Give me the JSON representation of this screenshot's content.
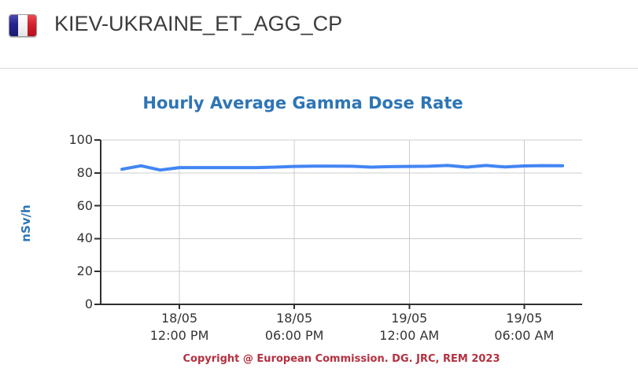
{
  "header": {
    "title": "KIEV-UKRAINE_ET_AGG_CP",
    "flag": "france-flag"
  },
  "chart_data": {
    "type": "line",
    "title": "Hourly Average Gamma Dose Rate",
    "xlabel": "",
    "ylabel": "nSv/h",
    "ylim": [
      0,
      100
    ],
    "yticks": [
      0,
      20,
      40,
      60,
      80,
      100
    ],
    "grid": true,
    "legend": "none",
    "x": [
      "18/05 09:00 AM",
      "18/05 10:00 AM",
      "18/05 11:00 AM",
      "18/05 12:00 PM",
      "18/05 01:00 PM",
      "18/05 02:00 PM",
      "18/05 03:00 PM",
      "18/05 04:00 PM",
      "18/05 05:00 PM",
      "18/05 06:00 PM",
      "18/05 07:00 PM",
      "18/05 08:00 PM",
      "18/05 09:00 PM",
      "18/05 10:00 PM",
      "18/05 11:00 PM",
      "19/05 12:00 AM",
      "19/05 01:00 AM",
      "19/05 02:00 AM",
      "19/05 03:00 AM",
      "19/05 04:00 AM",
      "19/05 05:00 AM",
      "19/05 06:00 AM",
      "19/05 07:00 AM",
      "19/05 08:00 AM"
    ],
    "series": [
      {
        "name": "Hourly Average Gamma Dose Rate",
        "values": [
          82.2,
          84.3,
          81.7,
          83.2,
          83.2,
          83.2,
          83.2,
          83.2,
          83.5,
          83.9,
          84.1,
          84.1,
          84.0,
          83.5,
          83.8,
          83.9,
          84.0,
          84.5,
          83.5,
          84.5,
          83.6,
          84.2,
          84.4,
          84.3
        ]
      }
    ],
    "xticks": [
      {
        "index": 3,
        "line1": "18/05",
        "line2": "12:00 PM"
      },
      {
        "index": 9,
        "line1": "18/05",
        "line2": "06:00 PM"
      },
      {
        "index": 15,
        "line1": "19/05",
        "line2": "12:00 AM"
      },
      {
        "index": 21,
        "line1": "19/05",
        "line2": "06:00 AM"
      }
    ],
    "copyright": "Copyright @ European Commission. DG. JRC, REM 2023",
    "colors": {
      "line": "#4285f4",
      "title": "#2e75b5",
      "axis_text": "#333333",
      "grid": "#cccccc",
      "axis": "#2f2f2f",
      "copyright": "#b5303f"
    }
  }
}
